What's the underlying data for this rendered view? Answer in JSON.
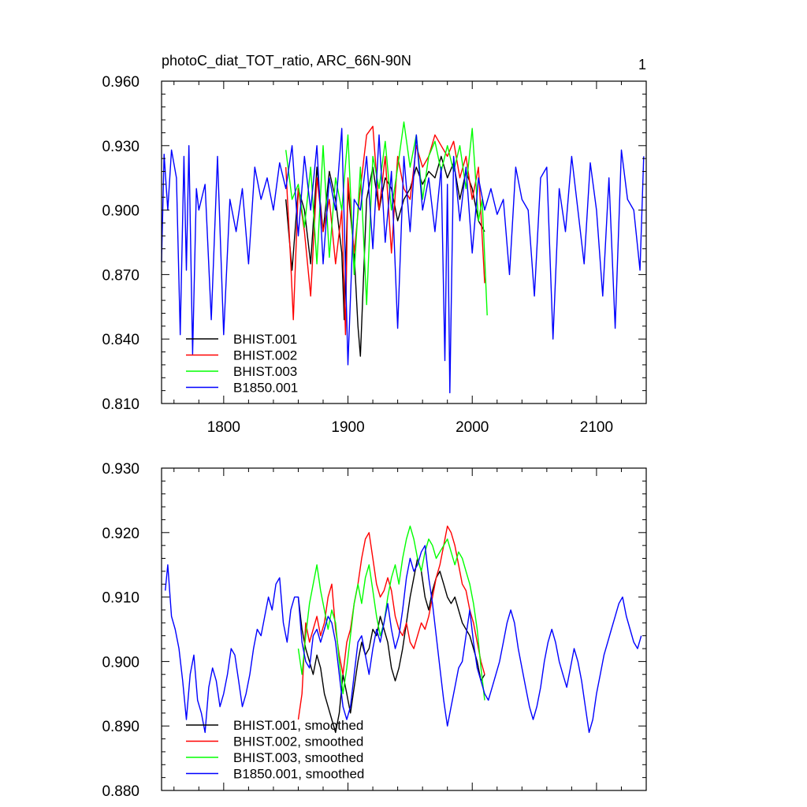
{
  "figure": {
    "panel_number": "1"
  },
  "chart_data": [
    {
      "type": "line",
      "title": "photoC_diat_TOT_ratio, ARC_66N-90N",
      "xlabel": "",
      "ylabel": "",
      "xlim": [
        1750,
        2140
      ],
      "ylim": [
        0.81,
        0.96
      ],
      "x_ticks": [
        1800,
        1900,
        2000,
        2100
      ],
      "x_tick_labels": [
        "1800",
        "1900",
        "2000",
        "2100"
      ],
      "y_ticks": [
        0.81,
        0.84,
        0.87,
        0.9,
        0.93,
        0.96
      ],
      "y_tick_labels": [
        "0.810",
        "0.840",
        "0.870",
        "0.900",
        "0.930",
        "0.960"
      ],
      "grid": false,
      "legend_position": "bottom-left",
      "series": [
        {
          "name": "BHIST.001",
          "color": "#000000",
          "x": [
            1850,
            1855,
            1860,
            1865,
            1870,
            1875,
            1880,
            1885,
            1890,
            1895,
            1897,
            1900,
            1905,
            1908,
            1910,
            1915,
            1920,
            1925,
            1930,
            1935,
            1940,
            1945,
            1950,
            1955,
            1960,
            1965,
            1970,
            1975,
            1980,
            1985,
            1990,
            1995,
            2000,
            2005,
            2010
          ],
          "y": [
            0.905,
            0.872,
            0.91,
            0.9,
            0.875,
            0.92,
            0.89,
            0.918,
            0.905,
            0.88,
            0.849,
            0.91,
            0.88,
            0.846,
            0.832,
            0.905,
            0.92,
            0.9,
            0.915,
            0.91,
            0.895,
            0.905,
            0.91,
            0.92,
            0.912,
            0.918,
            0.915,
            0.925,
            0.915,
            0.922,
            0.905,
            0.918,
            0.91,
            0.895,
            0.89
          ]
        },
        {
          "name": "BHIST.002",
          "color": "#ff0000",
          "x": [
            1850,
            1854,
            1856,
            1860,
            1865,
            1870,
            1875,
            1880,
            1885,
            1890,
            1895,
            1898,
            1900,
            1905,
            1910,
            1915,
            1920,
            1925,
            1930,
            1935,
            1940,
            1945,
            1950,
            1955,
            1960,
            1965,
            1970,
            1975,
            1980,
            1985,
            1990,
            1995,
            2000,
            2005,
            2010
          ],
          "y": [
            0.92,
            0.875,
            0.849,
            0.91,
            0.89,
            0.86,
            0.915,
            0.89,
            0.905,
            0.875,
            0.9,
            0.842,
            0.915,
            0.88,
            0.91,
            0.935,
            0.939,
            0.9,
            0.925,
            0.88,
            0.925,
            0.91,
            0.905,
            0.93,
            0.92,
            0.925,
            0.935,
            0.93,
            0.925,
            0.932,
            0.915,
            0.925,
            0.905,
            0.92,
            0.866
          ]
        },
        {
          "name": "BHIST.003",
          "color": "#00ff00",
          "x": [
            1850,
            1855,
            1860,
            1865,
            1870,
            1875,
            1880,
            1885,
            1890,
            1895,
            1900,
            1905,
            1910,
            1915,
            1920,
            1925,
            1930,
            1935,
            1940,
            1945,
            1950,
            1955,
            1960,
            1965,
            1970,
            1975,
            1980,
            1985,
            1990,
            1995,
            2000,
            2005,
            2008,
            2012
          ],
          "y": [
            0.928,
            0.905,
            0.912,
            0.892,
            0.92,
            0.875,
            0.93,
            0.878,
            0.915,
            0.9,
            0.935,
            0.87,
            0.92,
            0.856,
            0.925,
            0.91,
            0.932,
            0.9,
            0.92,
            0.941,
            0.92,
            0.935,
            0.905,
            0.925,
            0.932,
            0.918,
            0.93,
            0.918,
            0.93,
            0.91,
            0.938,
            0.895,
            0.905,
            0.851
          ]
        },
        {
          "name": "B1850.001",
          "color": "#0000ff",
          "x": [
            1750,
            1752,
            1755,
            1758,
            1762,
            1765,
            1768,
            1770,
            1772,
            1775,
            1778,
            1780,
            1785,
            1790,
            1795,
            1800,
            1805,
            1810,
            1815,
            1820,
            1825,
            1830,
            1835,
            1840,
            1845,
            1850,
            1855,
            1860,
            1865,
            1870,
            1875,
            1880,
            1885,
            1890,
            1895,
            1900,
            1905,
            1910,
            1915,
            1920,
            1925,
            1930,
            1935,
            1940,
            1945,
            1950,
            1955,
            1960,
            1965,
            1970,
            1975,
            1978,
            1980,
            1982,
            1985,
            1990,
            1995,
            2000,
            2005,
            2010,
            2015,
            2020,
            2025,
            2030,
            2035,
            2040,
            2045,
            2050,
            2055,
            2060,
            2065,
            2070,
            2075,
            2080,
            2085,
            2090,
            2095,
            2100,
            2105,
            2110,
            2115,
            2120,
            2125,
            2130,
            2135,
            2138
          ],
          "y": [
            0.876,
            0.926,
            0.9,
            0.928,
            0.915,
            0.842,
            0.925,
            0.872,
            0.93,
            0.833,
            0.91,
            0.9,
            0.912,
            0.849,
            0.925,
            0.842,
            0.905,
            0.89,
            0.91,
            0.875,
            0.92,
            0.905,
            0.915,
            0.9,
            0.922,
            0.91,
            0.93,
            0.888,
            0.925,
            0.9,
            0.93,
            0.875,
            0.915,
            0.9,
            0.938,
            0.828,
            0.905,
            0.9,
            0.925,
            0.882,
            0.935,
            0.885,
            0.918,
            0.845,
            0.925,
            0.89,
            0.935,
            0.9,
            0.915,
            0.89,
            0.92,
            0.83,
            0.912,
            0.815,
            0.925,
            0.895,
            0.92,
            0.88,
            0.915,
            0.9,
            0.91,
            0.898,
            0.905,
            0.87,
            0.92,
            0.905,
            0.9,
            0.86,
            0.915,
            0.92,
            0.84,
            0.91,
            0.89,
            0.925,
            0.9,
            0.875,
            0.922,
            0.9,
            0.86,
            0.915,
            0.845,
            0.928,
            0.905,
            0.9,
            0.872,
            0.925
          ]
        }
      ]
    },
    {
      "type": "line",
      "title": "",
      "xlabel": "",
      "ylabel": "",
      "xlim": [
        1750,
        2140
      ],
      "ylim": [
        0.88,
        0.93
      ],
      "x_ticks": [
        1800,
        1900,
        2000,
        2100
      ],
      "x_tick_labels": [],
      "y_ticks": [
        0.88,
        0.89,
        0.9,
        0.91,
        0.92,
        0.93
      ],
      "y_tick_labels": [
        "0.880",
        "0.890",
        "0.900",
        "0.910",
        "0.920",
        "0.930"
      ],
      "grid": false,
      "legend_position": "bottom-left",
      "series": [
        {
          "name": "BHIST.001, smoothed",
          "color": "#000000",
          "x": [
            1860,
            1863,
            1866,
            1869,
            1872,
            1875,
            1878,
            1881,
            1884,
            1887,
            1890,
            1893,
            1896,
            1899,
            1902,
            1905,
            1908,
            1911,
            1914,
            1917,
            1920,
            1923,
            1926,
            1929,
            1932,
            1935,
            1938,
            1941,
            1944,
            1947,
            1950,
            1953,
            1956,
            1959,
            1962,
            1965,
            1968,
            1971,
            1974,
            1977,
            1980,
            1983,
            1986,
            1989,
            1992,
            1995,
            1998,
            2001,
            2004,
            2007,
            2010
          ],
          "y": [
            0.91,
            0.905,
            0.902,
            0.9,
            0.898,
            0.901,
            0.899,
            0.895,
            0.893,
            0.891,
            0.889,
            0.892,
            0.898,
            0.895,
            0.892,
            0.896,
            0.9,
            0.903,
            0.901,
            0.902,
            0.905,
            0.904,
            0.907,
            0.905,
            0.903,
            0.899,
            0.897,
            0.899,
            0.902,
            0.906,
            0.91,
            0.913,
            0.916,
            0.914,
            0.91,
            0.908,
            0.911,
            0.913,
            0.914,
            0.912,
            0.91,
            0.909,
            0.91,
            0.908,
            0.906,
            0.905,
            0.904,
            0.902,
            0.9,
            0.897,
            0.898
          ]
        },
        {
          "name": "BHIST.002, smoothed",
          "color": "#ff0000",
          "x": [
            1860,
            1863,
            1866,
            1869,
            1872,
            1875,
            1878,
            1881,
            1884,
            1887,
            1890,
            1893,
            1896,
            1899,
            1902,
            1905,
            1908,
            1911,
            1914,
            1917,
            1920,
            1923,
            1926,
            1929,
            1932,
            1935,
            1938,
            1941,
            1944,
            1947,
            1950,
            1953,
            1956,
            1959,
            1962,
            1965,
            1968,
            1971,
            1974,
            1977,
            1980,
            1983,
            1986,
            1989,
            1992,
            1995,
            1998,
            2001,
            2004,
            2007,
            2010
          ],
          "y": [
            0.891,
            0.895,
            0.906,
            0.903,
            0.905,
            0.907,
            0.904,
            0.906,
            0.91,
            0.912,
            0.905,
            0.901,
            0.898,
            0.903,
            0.905,
            0.909,
            0.912,
            0.916,
            0.919,
            0.92,
            0.916,
            0.912,
            0.91,
            0.911,
            0.913,
            0.911,
            0.907,
            0.905,
            0.904,
            0.906,
            0.903,
            0.902,
            0.904,
            0.906,
            0.905,
            0.907,
            0.91,
            0.913,
            0.915,
            0.918,
            0.921,
            0.92,
            0.918,
            0.915,
            0.912,
            0.911,
            0.908,
            0.906,
            0.903,
            0.9,
            0.898
          ]
        },
        {
          "name": "BHIST.003, smoothed",
          "color": "#00ff00",
          "x": [
            1860,
            1863,
            1866,
            1869,
            1872,
            1875,
            1878,
            1881,
            1884,
            1887,
            1890,
            1893,
            1896,
            1899,
            1902,
            1905,
            1908,
            1911,
            1914,
            1917,
            1920,
            1923,
            1926,
            1929,
            1932,
            1935,
            1938,
            1941,
            1944,
            1947,
            1950,
            1953,
            1956,
            1959,
            1962,
            1965,
            1968,
            1971,
            1974,
            1977,
            1980,
            1983,
            1986,
            1989,
            1992,
            1995,
            1998,
            2001,
            2004,
            2007,
            2010
          ],
          "y": [
            0.902,
            0.898,
            0.904,
            0.909,
            0.912,
            0.915,
            0.911,
            0.908,
            0.905,
            0.908,
            0.906,
            0.9,
            0.895,
            0.899,
            0.904,
            0.909,
            0.912,
            0.909,
            0.913,
            0.915,
            0.911,
            0.907,
            0.904,
            0.906,
            0.91,
            0.913,
            0.915,
            0.912,
            0.916,
            0.919,
            0.921,
            0.919,
            0.916,
            0.914,
            0.917,
            0.919,
            0.918,
            0.916,
            0.917,
            0.918,
            0.919,
            0.917,
            0.915,
            0.917,
            0.916,
            0.914,
            0.912,
            0.909,
            0.905,
            0.899,
            0.894
          ]
        },
        {
          "name": "B1850.001, smoothed",
          "color": "#0000ff",
          "x": [
            1753,
            1755,
            1758,
            1761,
            1764,
            1767,
            1770,
            1773,
            1776,
            1779,
            1782,
            1785,
            1788,
            1791,
            1794,
            1797,
            1800,
            1803,
            1806,
            1809,
            1812,
            1815,
            1818,
            1821,
            1824,
            1827,
            1830,
            1833,
            1836,
            1839,
            1842,
            1845,
            1848,
            1851,
            1854,
            1857,
            1860,
            1863,
            1866,
            1869,
            1872,
            1875,
            1878,
            1881,
            1884,
            1887,
            1890,
            1893,
            1896,
            1899,
            1902,
            1905,
            1908,
            1911,
            1914,
            1917,
            1920,
            1923,
            1926,
            1929,
            1932,
            1935,
            1938,
            1941,
            1944,
            1947,
            1950,
            1953,
            1956,
            1959,
            1962,
            1965,
            1968,
            1971,
            1974,
            1977,
            1980,
            1983,
            1986,
            1989,
            1992,
            1995,
            1998,
            2001,
            2004,
            2007,
            2010,
            2013,
            2016,
            2019,
            2022,
            2025,
            2028,
            2031,
            2034,
            2037,
            2040,
            2043,
            2046,
            2049,
            2052,
            2055,
            2058,
            2061,
            2064,
            2067,
            2070,
            2073,
            2076,
            2079,
            2082,
            2085,
            2088,
            2091,
            2094,
            2097,
            2100,
            2103,
            2106,
            2109,
            2112,
            2115,
            2118,
            2121,
            2124,
            2127,
            2130,
            2133,
            2136
          ],
          "y": [
            0.911,
            0.915,
            0.907,
            0.905,
            0.902,
            0.897,
            0.891,
            0.898,
            0.901,
            0.894,
            0.892,
            0.889,
            0.896,
            0.899,
            0.897,
            0.893,
            0.895,
            0.898,
            0.902,
            0.901,
            0.897,
            0.893,
            0.895,
            0.898,
            0.902,
            0.905,
            0.904,
            0.907,
            0.91,
            0.908,
            0.912,
            0.913,
            0.906,
            0.903,
            0.908,
            0.91,
            0.91,
            0.903,
            0.9,
            0.899,
            0.904,
            0.905,
            0.903,
            0.905,
            0.907,
            0.906,
            0.903,
            0.898,
            0.893,
            0.891,
            0.893,
            0.898,
            0.903,
            0.904,
            0.901,
            0.898,
            0.902,
            0.905,
            0.903,
            0.906,
            0.909,
            0.905,
            0.902,
            0.904,
            0.908,
            0.913,
            0.916,
            0.914,
            0.915,
            0.917,
            0.918,
            0.913,
            0.909,
            0.904,
            0.899,
            0.894,
            0.89,
            0.893,
            0.896,
            0.899,
            0.9,
            0.904,
            0.908,
            0.903,
            0.899,
            0.897,
            0.895,
            0.894,
            0.896,
            0.898,
            0.9,
            0.903,
            0.906,
            0.908,
            0.906,
            0.902,
            0.899,
            0.896,
            0.893,
            0.891,
            0.893,
            0.896,
            0.9,
            0.903,
            0.905,
            0.903,
            0.9,
            0.898,
            0.896,
            0.899,
            0.902,
            0.9,
            0.897,
            0.893,
            0.889,
            0.891,
            0.895,
            0.898,
            0.901,
            0.903,
            0.905,
            0.907,
            0.909,
            0.91,
            0.907,
            0.905,
            0.903,
            0.902,
            0.904
          ]
        }
      ]
    }
  ]
}
